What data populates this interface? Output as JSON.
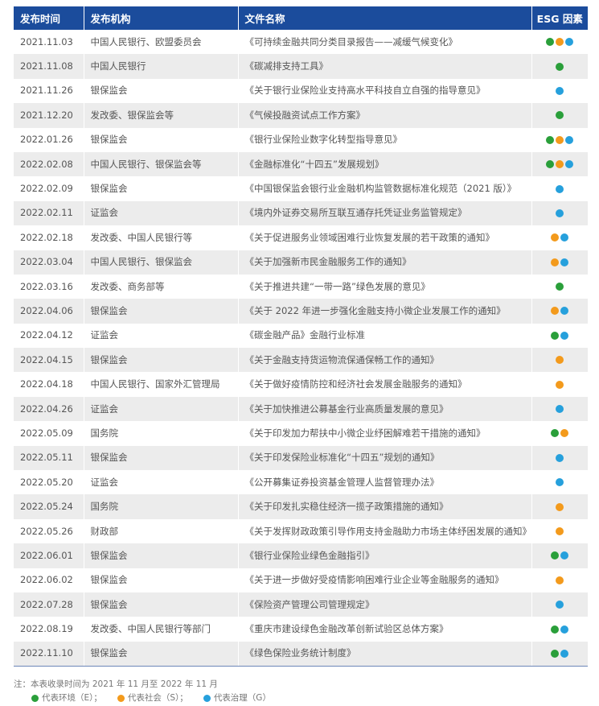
{
  "colors": {
    "E": "#2a9f3a",
    "S": "#f39a1c",
    "G": "#26a0dc",
    "header": "#1b4c9c"
  },
  "headers": [
    "发布时间",
    "发布机构",
    "文件名称",
    "ESG 因素"
  ],
  "rows": [
    {
      "date": "2021.11.03",
      "org": "中国人民银行、欧盟委员会",
      "doc": "《可持续金融共同分类目录报告——减缓气候变化》",
      "esg": [
        "E",
        "S",
        "G"
      ]
    },
    {
      "date": "2021.11.08",
      "org": "中国人民银行",
      "doc": "《碳减排支持工具》",
      "esg": [
        "E"
      ]
    },
    {
      "date": "2021.11.26",
      "org": "银保监会",
      "doc": "《关于银行业保险业支持高水平科技自立自强的指导意见》",
      "esg": [
        "G"
      ]
    },
    {
      "date": "2021.12.20",
      "org": "发改委、银保监会等",
      "doc": "《气候投融资试点工作方案》",
      "esg": [
        "E"
      ]
    },
    {
      "date": "2022.01.26",
      "org": "银保监会",
      "doc": "《银行业保险业数字化转型指导意见》",
      "esg": [
        "E",
        "S",
        "G"
      ]
    },
    {
      "date": "2022.02.08",
      "org": "中国人民银行、银保监会等",
      "doc": "《金融标准化“十四五”发展规划》",
      "esg": [
        "E",
        "S",
        "G"
      ]
    },
    {
      "date": "2022.02.09",
      "org": "银保监会",
      "doc": "《中国银保监会银行业金融机构监管数据标准化规范（2021 版）》",
      "esg": [
        "G"
      ]
    },
    {
      "date": "2022.02.11",
      "org": "证监会",
      "doc": "《境内外证券交易所互联互通存托凭证业务监管规定》",
      "esg": [
        "G"
      ]
    },
    {
      "date": "2022.02.18",
      "org": "发改委、中国人民银行等",
      "doc": "《关于促进服务业领域困难行业恢复发展的若干政策的通知》",
      "esg": [
        "S",
        "G"
      ]
    },
    {
      "date": "2022.03.04",
      "org": "中国人民银行、银保监会",
      "doc": "《关于加强新市民金融服务工作的通知》",
      "esg": [
        "S",
        "G"
      ]
    },
    {
      "date": "2022.03.16",
      "org": "发改委、商务部等",
      "doc": "《关于推进共建“一带一路”绿色发展的意见》",
      "esg": [
        "E"
      ]
    },
    {
      "date": "2022.04.06",
      "org": "银保监会",
      "doc": "《关于 2022 年进一步强化金融支持小微企业发展工作的通知》",
      "esg": [
        "S",
        "G"
      ]
    },
    {
      "date": "2022.04.12",
      "org": "证监会",
      "doc": "《碳金融产品》金融行业标准",
      "esg": [
        "E",
        "G"
      ]
    },
    {
      "date": "2022.04.15",
      "org": "银保监会",
      "doc": "《关于金融支持货运物流保通保畅工作的通知》",
      "esg": [
        "S"
      ]
    },
    {
      "date": "2022.04.18",
      "org": "中国人民银行、国家外汇管理局",
      "doc": "《关于做好疫情防控和经济社会发展金融服务的通知》",
      "esg": [
        "S"
      ]
    },
    {
      "date": "2022.04.26",
      "org": "证监会",
      "doc": "《关于加快推进公募基金行业高质量发展的意见》",
      "esg": [
        "G"
      ]
    },
    {
      "date": "2022.05.09",
      "org": "国务院",
      "doc": "《关于印发加力帮扶中小微企业纾困解难若干措施的通知》",
      "esg": [
        "E",
        "S"
      ]
    },
    {
      "date": "2022.05.11",
      "org": "银保监会",
      "doc": "《关于印发保险业标准化“十四五”规划的通知》",
      "esg": [
        "G"
      ]
    },
    {
      "date": "2022.05.20",
      "org": "证监会",
      "doc": "《公开募集证券投资基金管理人监督管理办法》",
      "esg": [
        "G"
      ]
    },
    {
      "date": "2022.05.24",
      "org": "国务院",
      "doc": "《关于印发扎实稳住经济一揽子政策措施的通知》",
      "esg": [
        "S"
      ]
    },
    {
      "date": "2022.05.26",
      "org": "财政部",
      "doc": "《关于发挥财政政策引导作用支持金融助力市场主体纾困发展的通知》",
      "esg": [
        "S"
      ]
    },
    {
      "date": "2022.06.01",
      "org": "银保监会",
      "doc": "《银行业保险业绿色金融指引》",
      "esg": [
        "E",
        "G"
      ]
    },
    {
      "date": "2022.06.02",
      "org": "银保监会",
      "doc": "《关于进一步做好受疫情影响困难行业企业等金融服务的通知》",
      "esg": [
        "S"
      ]
    },
    {
      "date": "2022.07.28",
      "org": "银保监会",
      "doc": "《保险资产管理公司管理规定》",
      "esg": [
        "G"
      ]
    },
    {
      "date": "2022.08.19",
      "org": "发改委、中国人民银行等部门",
      "doc": "《重庆市建设绿色金融改革创新试验区总体方案》",
      "esg": [
        "E",
        "G"
      ]
    },
    {
      "date": "2022.11.10",
      "org": "银保监会",
      "doc": "《绿色保险业务统计制度》",
      "esg": [
        "E",
        "G"
      ]
    }
  ],
  "note": "注：本表收录时间为 2021 年 11 月至 2022 年 11 月",
  "legend": [
    {
      "key": "E",
      "label": "代表环境（E）；"
    },
    {
      "key": "S",
      "label": "代表社会（S）；"
    },
    {
      "key": "G",
      "label": "代表治理（G）"
    }
  ]
}
